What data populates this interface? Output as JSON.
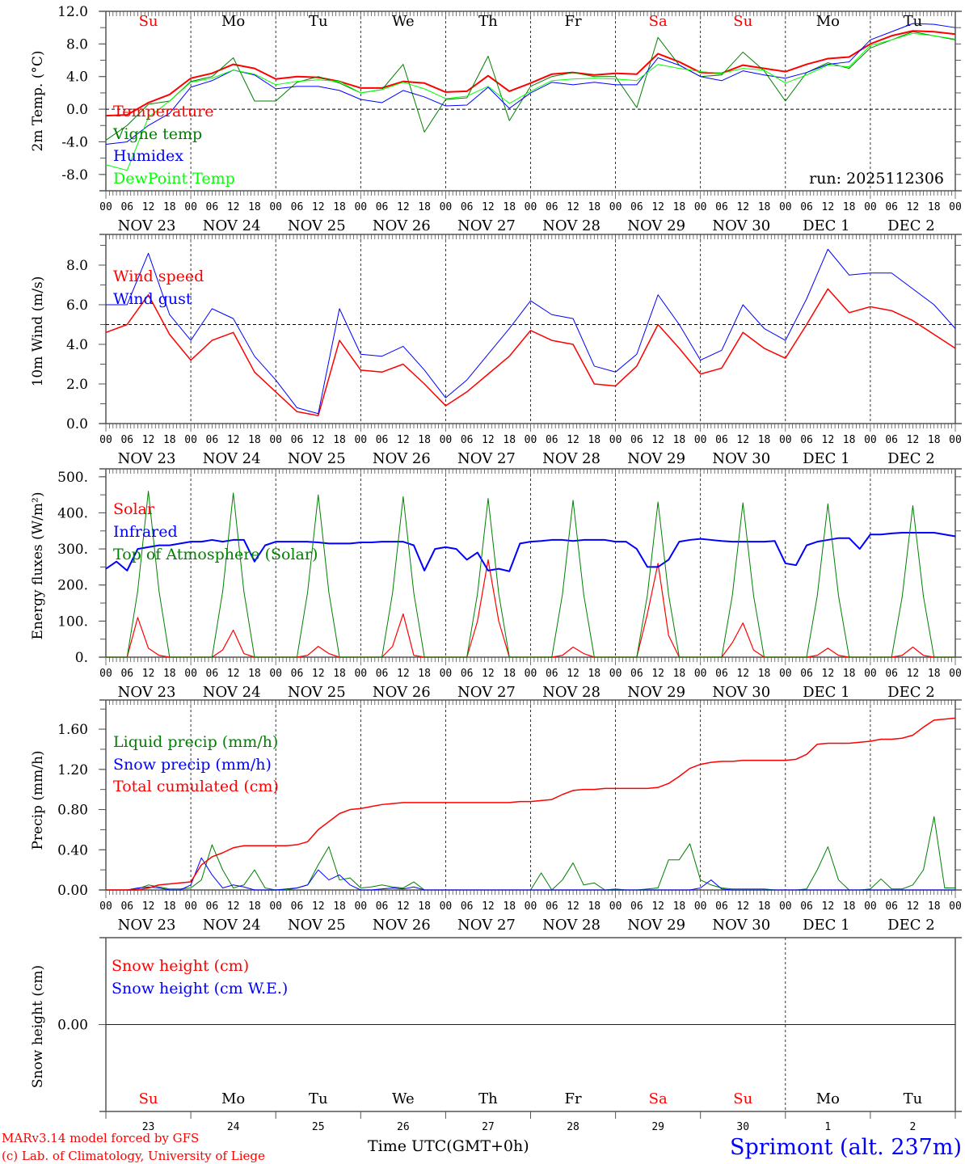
{
  "colors": {
    "red": "#ff0000",
    "blue": "#0000ff",
    "darkgreen": "#008000",
    "lightgreen": "#00ff00",
    "black": "#000000"
  },
  "run_label": "run: 2025112306",
  "day_names": [
    {
      "label": "Su",
      "color": "#ff0000"
    },
    {
      "label": "Mo",
      "color": "#000000"
    },
    {
      "label": "Tu",
      "color": "#000000"
    },
    {
      "label": "We",
      "color": "#000000"
    },
    {
      "label": "Th",
      "color": "#000000"
    },
    {
      "label": "Fr",
      "color": "#000000"
    },
    {
      "label": "Sa",
      "color": "#ff0000"
    },
    {
      "label": "Su",
      "color": "#ff0000"
    },
    {
      "label": "Mo",
      "color": "#000000"
    },
    {
      "label": "Tu",
      "color": "#000000"
    }
  ],
  "date_labels": [
    "NOV 23",
    "NOV 24",
    "NOV 25",
    "NOV 26",
    "NOV 27",
    "NOV 28",
    "NOV 29",
    "NOV 30",
    "DEC  1",
    "DEC  2"
  ],
  "day_numbers": [
    "23",
    "24",
    "25",
    "26",
    "27",
    "28",
    "29",
    "30",
    "1",
    "2"
  ],
  "hour_labels": [
    "00",
    "06",
    "12",
    "18"
  ],
  "footer": {
    "model": "MARv3.14 model forced by GFS",
    "credit": "(c) Lab. of Climatology, University of Liege",
    "time_axis": "Time UTC(GMT+0h)",
    "location": "Sprimont (alt. 237m)"
  },
  "chart_data": [
    {
      "type": "line",
      "ylabel": "2m Temp. (°C)",
      "ylim": [
        -10,
        12
      ],
      "yticks": [
        -8,
        -4,
        0,
        4,
        8,
        12
      ],
      "ytick_labels": [
        "-8.0",
        "-4.0",
        "0.0",
        "4.0",
        "8.0",
        "12.0"
      ],
      "minor_step": 2,
      "ref_line": 0,
      "x_range_hours": [
        0,
        240
      ],
      "series": [
        {
          "name": "Temperature",
          "color": "#ff0000",
          "width": 2,
          "step_hours": 6,
          "values": [
            -0.8,
            -0.7,
            0.8,
            1.8,
            3.8,
            4.4,
            5.5,
            5.0,
            3.7,
            4.0,
            3.9,
            3.4,
            2.6,
            2.6,
            3.4,
            3.2,
            2.1,
            2.2,
            4.1,
            2.2,
            3.2,
            4.3,
            4.5,
            4.2,
            4.4,
            4.3,
            6.8,
            5.8,
            4.5,
            4.4,
            5.4,
            5.0,
            4.6,
            5.5,
            6.2,
            6.4,
            8.0,
            9.0,
            9.6,
            9.5,
            9.2
          ]
        },
        {
          "name": "Vigne temp",
          "color": "#008000",
          "width": 1,
          "step_hours": 6,
          "values": [
            -3.8,
            -2.0,
            0.6,
            1.0,
            3.4,
            4.0,
            6.3,
            1.0,
            1.0,
            3.3,
            4.0,
            3.2,
            2.0,
            2.4,
            5.5,
            -2.8,
            1.2,
            1.4,
            6.5,
            -1.4,
            2.8,
            4.0,
            4.5,
            4.0,
            4.0,
            0.2,
            8.8,
            5.4,
            4.0,
            4.2,
            7.0,
            4.7,
            1.0,
            4.5,
            5.7,
            5.0,
            7.5,
            8.5,
            9.5,
            9.0,
            8.5
          ]
        },
        {
          "name": "Humidex",
          "color": "#0000ff",
          "width": 1,
          "step_hours": 6,
          "values": [
            -4.3,
            -4.0,
            -2.0,
            -0.5,
            2.7,
            3.5,
            4.8,
            4.2,
            2.5,
            2.8,
            2.8,
            2.3,
            1.2,
            0.8,
            2.3,
            1.5,
            0.4,
            0.5,
            2.7,
            0.1,
            2.0,
            3.3,
            3.0,
            3.3,
            3.0,
            3.0,
            6.3,
            5.4,
            4.0,
            3.5,
            4.7,
            4.2,
            3.8,
            4.5,
            5.5,
            5.8,
            8.5,
            9.5,
            10.5,
            10.4,
            10.0
          ]
        },
        {
          "name": "DewPoint Temp",
          "color": "#00ff00",
          "width": 1,
          "step_hours": 6,
          "values": [
            -6.8,
            -7.5,
            -1.0,
            1.0,
            3.3,
            3.8,
            4.8,
            4.3,
            3.0,
            3.4,
            3.6,
            3.4,
            2.0,
            2.4,
            3.3,
            2.5,
            1.3,
            1.6,
            2.8,
            0.7,
            2.2,
            3.5,
            3.7,
            3.8,
            3.7,
            3.5,
            5.5,
            5.0,
            4.6,
            4.4,
            5.0,
            4.8,
            3.2,
            4.2,
            5.4,
            5.2,
            7.8,
            8.5,
            9.3,
            9.0,
            8.6
          ]
        }
      ]
    },
    {
      "type": "line",
      "ylabel": "10m Wind (m/s)",
      "ylim": [
        0,
        9.55
      ],
      "yticks": [
        0,
        2,
        4,
        6,
        8
      ],
      "ytick_labels": [
        "0.0",
        "2.0",
        "4.0",
        "6.0",
        "8.0"
      ],
      "minor_step": 1,
      "ref_line": 5,
      "x_range_hours": [
        0,
        240
      ],
      "series": [
        {
          "name": "Wind speed",
          "color": "#ff0000",
          "width": 1.5,
          "step_hours": 6,
          "values": [
            4.6,
            5.0,
            6.5,
            4.5,
            3.2,
            4.2,
            4.6,
            2.6,
            1.6,
            0.6,
            0.4,
            4.2,
            2.7,
            2.6,
            3.0,
            2.0,
            0.9,
            1.6,
            2.5,
            3.4,
            4.7,
            4.2,
            4.0,
            2.0,
            1.9,
            2.9,
            5.0,
            3.8,
            2.5,
            2.8,
            4.6,
            3.8,
            3.3,
            5.0,
            6.8,
            5.6,
            5.9,
            5.7,
            5.2,
            4.5,
            3.8
          ]
        },
        {
          "name": "Wind gust",
          "color": "#0000ff",
          "width": 1,
          "step_hours": 6,
          "values": [
            6.0,
            6.0,
            8.6,
            5.5,
            4.2,
            5.8,
            5.3,
            3.4,
            2.2,
            0.8,
            0.5,
            5.8,
            3.5,
            3.4,
            3.9,
            2.7,
            1.3,
            2.2,
            3.5,
            4.8,
            6.2,
            5.5,
            5.3,
            2.9,
            2.6,
            3.5,
            6.5,
            5.0,
            3.2,
            3.7,
            6.0,
            4.8,
            4.2,
            6.3,
            8.8,
            7.5,
            7.6,
            7.6,
            6.8,
            6.0,
            4.8
          ]
        }
      ]
    },
    {
      "type": "line",
      "ylabel": "Energy fluxes (W/m²)",
      "ylim": [
        0,
        522
      ],
      "yticks": [
        0,
        100,
        200,
        300,
        400,
        500
      ],
      "ytick_labels": [
        "0.",
        "100.",
        "200.",
        "300.",
        "400.",
        "500."
      ],
      "minor_step": 50,
      "ref_line": null,
      "x_range_hours": [
        0,
        240
      ],
      "series": [
        {
          "name": "Solar",
          "color": "#ff0000",
          "width": 1.2,
          "step_hours": 3,
          "values": [
            0,
            0,
            0,
            110,
            25,
            5,
            0,
            0,
            0,
            0,
            0,
            20,
            75,
            10,
            0,
            0,
            0,
            0,
            0,
            5,
            30,
            10,
            0,
            0,
            0,
            0,
            0,
            30,
            120,
            5,
            0,
            0,
            0,
            0,
            0,
            100,
            270,
            100,
            0,
            0,
            0,
            0,
            0,
            5,
            28,
            10,
            0,
            0,
            0,
            0,
            0,
            120,
            260,
            60,
            0,
            0,
            0,
            0,
            0,
            40,
            95,
            20,
            0,
            0,
            0,
            0,
            0,
            5,
            25,
            5,
            0,
            0,
            0,
            0,
            0,
            5,
            28,
            5,
            0,
            0,
            0
          ]
        },
        {
          "name": "Infrared",
          "color": "#0000ff",
          "width": 2,
          "step_hours": 3,
          "values": [
            245,
            265,
            240,
            300,
            305,
            310,
            310,
            315,
            320,
            320,
            325,
            320,
            325,
            325,
            265,
            310,
            320,
            320,
            320,
            320,
            318,
            315,
            315,
            315,
            318,
            318,
            320,
            320,
            320,
            310,
            240,
            300,
            305,
            300,
            270,
            290,
            240,
            245,
            238,
            315,
            320,
            322,
            325,
            325,
            322,
            325,
            325,
            325,
            320,
            320,
            300,
            250,
            250,
            270,
            320,
            325,
            328,
            325,
            322,
            320,
            320,
            320,
            320,
            322,
            260,
            255,
            310,
            320,
            325,
            330,
            330,
            300,
            340,
            340,
            343,
            345,
            345,
            345,
            345,
            340,
            335
          ]
        },
        {
          "name": "Top of Atmosphere (Solar)",
          "color": "#008000",
          "width": 1,
          "step_hours": 3,
          "values": [
            0,
            0,
            0,
            184,
            460,
            184,
            0,
            0,
            0,
            0,
            0,
            182,
            455,
            182,
            0,
            0,
            0,
            0,
            0,
            180,
            450,
            180,
            0,
            0,
            0,
            0,
            0,
            178,
            445,
            178,
            0,
            0,
            0,
            0,
            0,
            176,
            440,
            176,
            0,
            0,
            0,
            0,
            0,
            174,
            435,
            174,
            0,
            0,
            0,
            0,
            0,
            172,
            430,
            172,
            0,
            0,
            0,
            0,
            0,
            171,
            428,
            171,
            0,
            0,
            0,
            0,
            0,
            170,
            425,
            170,
            0,
            0,
            0,
            0,
            0,
            168,
            420,
            168,
            0,
            0,
            0
          ]
        }
      ]
    },
    {
      "type": "line",
      "ylabel": "Precip (mm/h)",
      "ylim": [
        0,
        1.89
      ],
      "yticks": [
        0,
        0.4,
        0.8,
        1.2,
        1.6
      ],
      "ytick_labels": [
        "0.00",
        "0.40",
        "0.80",
        "1.20",
        "1.60"
      ],
      "minor_step": 0.2,
      "ref_line": null,
      "x_range_hours": [
        0,
        240
      ],
      "series": [
        {
          "name": "Liquid precip (mm/h)",
          "color": "#008000",
          "width": 1,
          "step_hours": 3,
          "values": [
            0,
            0,
            0,
            0.01,
            0.05,
            0.03,
            0.01,
            0.01,
            0.02,
            0.1,
            0.45,
            0.2,
            0.02,
            0.05,
            0.2,
            0.02,
            0,
            0,
            0.02,
            0.05,
            0.25,
            0.43,
            0.1,
            0.12,
            0.02,
            0.03,
            0.05,
            0.03,
            0.02,
            0.08,
            0,
            0,
            0,
            0,
            0,
            0,
            0,
            0,
            0,
            0,
            0,
            0.17,
            0,
            0.1,
            0.27,
            0.05,
            0.07,
            0,
            0.01,
            0,
            0,
            0.01,
            0.02,
            0.3,
            0.3,
            0.46,
            0.1,
            0.05,
            0.02,
            0.01,
            0.01,
            0.01,
            0.01,
            0,
            0,
            0,
            0.01,
            0.2,
            0.43,
            0.1,
            0,
            0,
            0.01,
            0.11,
            0.01,
            0.01,
            0.05,
            0.2,
            0.73,
            0.02,
            0.02
          ]
        },
        {
          "name": "Snow precip (mm/h)",
          "color": "#0000ff",
          "width": 1,
          "step_hours": 3,
          "values": [
            0,
            0,
            0,
            0.02,
            0.03,
            0.02,
            0,
            0,
            0.05,
            0.32,
            0.15,
            0.02,
            0.05,
            0.03,
            0,
            0,
            0,
            0.01,
            0.02,
            0.05,
            0.2,
            0.1,
            0.15,
            0.05,
            0,
            0,
            0.01,
            0.02,
            0.01,
            0.03,
            0,
            0,
            0,
            0,
            0,
            0,
            0,
            0,
            0,
            0,
            0,
            0,
            0,
            0,
            0,
            0,
            0,
            0,
            0,
            0,
            0,
            0,
            0,
            0,
            0,
            0,
            0.02,
            0.1,
            0.01,
            0,
            0,
            0,
            0,
            0,
            0,
            0,
            0,
            0,
            0,
            0,
            0,
            0,
            0,
            0,
            0,
            0,
            0,
            0,
            0,
            0,
            0
          ]
        },
        {
          "name": "Total cumulated (cm)",
          "color": "#ff0000",
          "width": 1.5,
          "step_hours": 3,
          "values": [
            0,
            0,
            0,
            0,
            0.02,
            0.05,
            0.06,
            0.07,
            0.08,
            0.25,
            0.33,
            0.37,
            0.42,
            0.44,
            0.44,
            0.44,
            0.44,
            0.44,
            0.45,
            0.48,
            0.6,
            0.68,
            0.76,
            0.8,
            0.81,
            0.83,
            0.85,
            0.86,
            0.87,
            0.87,
            0.87,
            0.87,
            0.87,
            0.87,
            0.87,
            0.87,
            0.87,
            0.87,
            0.87,
            0.88,
            0.88,
            0.89,
            0.9,
            0.95,
            0.99,
            1.0,
            1.0,
            1.01,
            1.01,
            1.01,
            1.01,
            1.01,
            1.02,
            1.06,
            1.13,
            1.21,
            1.25,
            1.27,
            1.28,
            1.28,
            1.29,
            1.29,
            1.29,
            1.29,
            1.29,
            1.3,
            1.35,
            1.45,
            1.46,
            1.46,
            1.46,
            1.47,
            1.48,
            1.5,
            1.5,
            1.51,
            1.54,
            1.62,
            1.69,
            1.7,
            1.71
          ]
        }
      ]
    },
    {
      "type": "line",
      "ylabel": "Snow height (cm)",
      "ylim": [
        -1,
        1
      ],
      "yticks": [
        0
      ],
      "ytick_labels": [
        "0.00"
      ],
      "minor_step": null,
      "ref_line": null,
      "x_range_hours": [
        0,
        240
      ],
      "series": [
        {
          "name": "Snow height (cm)",
          "color": "#ff0000",
          "width": 1,
          "step_hours": 240,
          "values": [
            0,
            0
          ]
        },
        {
          "name": "Snow height (cm W.E.)",
          "color": "#0000ff",
          "width": 1,
          "step_hours": 240,
          "values": [
            0,
            0
          ]
        }
      ]
    }
  ]
}
